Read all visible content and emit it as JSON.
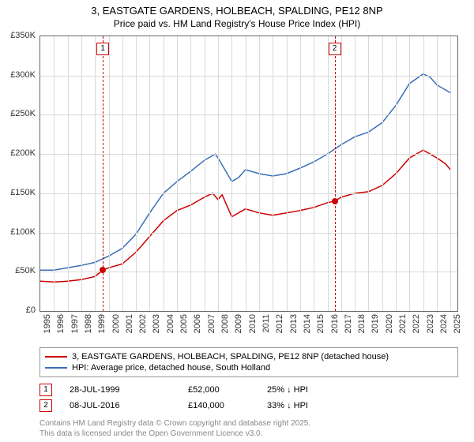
{
  "title_main": "3, EASTGATE GARDENS, HOLBEACH, SPALDING, PE12 8NP",
  "title_sub": "Price paid vs. HM Land Registry's House Price Index (HPI)",
  "chart": {
    "type": "line",
    "background_color": "#ffffff",
    "grid_color": "#d9d9d9",
    "border_color": "#666666",
    "ylim": [
      0,
      350000
    ],
    "ytick_step": 50000,
    "ytick_labels": [
      "£0",
      "£50K",
      "£100K",
      "£150K",
      "£200K",
      "£250K",
      "£300K",
      "£350K"
    ],
    "xlim": [
      1995,
      2025.5
    ],
    "xtick_step": 1,
    "xtick_labels": [
      "1995",
      "1996",
      "1997",
      "1998",
      "1999",
      "2000",
      "2001",
      "2002",
      "2003",
      "2004",
      "2005",
      "2006",
      "2007",
      "2008",
      "2009",
      "2010",
      "2011",
      "2012",
      "2013",
      "2014",
      "2015",
      "2016",
      "2017",
      "2018",
      "2019",
      "2020",
      "2021",
      "2022",
      "2023",
      "2024",
      "2025"
    ],
    "series_red": {
      "label": "3, EASTGATE GARDENS, HOLBEACH, SPALDING, PE12 8NP (detached house)",
      "color": "#cc0000",
      "line_width": 1.5,
      "points": [
        [
          1995,
          38000
        ],
        [
          1996,
          37000
        ],
        [
          1997,
          38000
        ],
        [
          1998,
          40000
        ],
        [
          1999,
          44000
        ],
        [
          1999.57,
          52000
        ],
        [
          2000,
          55000
        ],
        [
          2001,
          60000
        ],
        [
          2002,
          75000
        ],
        [
          2003,
          95000
        ],
        [
          2004,
          115000
        ],
        [
          2005,
          128000
        ],
        [
          2006,
          135000
        ],
        [
          2007,
          145000
        ],
        [
          2007.6,
          150000
        ],
        [
          2008,
          142000
        ],
        [
          2008.3,
          148000
        ],
        [
          2009,
          120000
        ],
        [
          2010,
          130000
        ],
        [
          2011,
          125000
        ],
        [
          2012,
          122000
        ],
        [
          2013,
          125000
        ],
        [
          2014,
          128000
        ],
        [
          2015,
          132000
        ],
        [
          2016,
          138000
        ],
        [
          2016.52,
          140000
        ],
        [
          2017,
          145000
        ],
        [
          2018,
          150000
        ],
        [
          2019,
          152000
        ],
        [
          2020,
          160000
        ],
        [
          2021,
          175000
        ],
        [
          2022,
          195000
        ],
        [
          2023,
          205000
        ],
        [
          2023.5,
          200000
        ],
        [
          2024,
          195000
        ],
        [
          2024.6,
          188000
        ],
        [
          2025,
          180000
        ]
      ]
    },
    "series_blue": {
      "label": "HPI: Average price, detached house, South Holland",
      "color": "#3a6fb7",
      "line_width": 1.5,
      "points": [
        [
          1995,
          52000
        ],
        [
          1996,
          52000
        ],
        [
          1997,
          55000
        ],
        [
          1998,
          58000
        ],
        [
          1999,
          62000
        ],
        [
          2000,
          70000
        ],
        [
          2001,
          80000
        ],
        [
          2002,
          98000
        ],
        [
          2003,
          125000
        ],
        [
          2004,
          150000
        ],
        [
          2005,
          165000
        ],
        [
          2006,
          178000
        ],
        [
          2007,
          192000
        ],
        [
          2007.8,
          200000
        ],
        [
          2008,
          195000
        ],
        [
          2009,
          165000
        ],
        [
          2009.5,
          170000
        ],
        [
          2010,
          180000
        ],
        [
          2011,
          175000
        ],
        [
          2012,
          172000
        ],
        [
          2013,
          175000
        ],
        [
          2014,
          182000
        ],
        [
          2015,
          190000
        ],
        [
          2016,
          200000
        ],
        [
          2017,
          212000
        ],
        [
          2018,
          222000
        ],
        [
          2019,
          228000
        ],
        [
          2020,
          240000
        ],
        [
          2021,
          262000
        ],
        [
          2022,
          290000
        ],
        [
          2023,
          302000
        ],
        [
          2023.5,
          298000
        ],
        [
          2024,
          288000
        ],
        [
          2024.6,
          282000
        ],
        [
          2025,
          278000
        ]
      ]
    },
    "sale_markers": [
      {
        "n": "1",
        "x": 1999.57,
        "y": 52000,
        "color": "#cc0000"
      },
      {
        "n": "2",
        "x": 2016.52,
        "y": 140000,
        "color": "#cc0000"
      }
    ]
  },
  "legend": {
    "border_color": "#999999"
  },
  "sales": [
    {
      "n": "1",
      "date": "28-JUL-1999",
      "price": "£52,000",
      "diff": "25% ↓ HPI"
    },
    {
      "n": "2",
      "date": "08-JUL-2016",
      "price": "£140,000",
      "diff": "33% ↓ HPI"
    }
  ],
  "license_line1": "Contains HM Land Registry data © Crown copyright and database right 2025.",
  "license_line2": "This data is licensed under the Open Government Licence v3.0."
}
